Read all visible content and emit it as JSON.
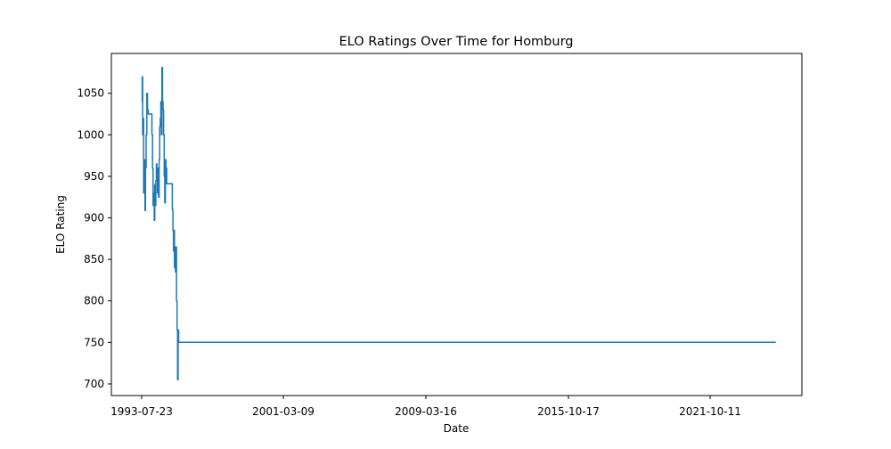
{
  "chart_data": {
    "type": "line",
    "title": "ELO Ratings Over Time for Homburg",
    "xlabel": "Date",
    "ylabel": "ELO Rating",
    "x_tick_labels": [
      "1993-07-23",
      "2001-03-09",
      "2009-03-16",
      "2015-10-17",
      "2021-10-11"
    ],
    "y_ticks": [
      700,
      750,
      800,
      850,
      900,
      950,
      1000,
      1050
    ],
    "ylim": [
      686,
      1098
    ],
    "grid": false,
    "line_color": "#1f77b4",
    "series": [
      {
        "points": [
          [
            "1993-07-23",
            1040
          ],
          [
            "1993-08-01",
            1070
          ],
          [
            "1993-08-10",
            1000
          ],
          [
            "1993-08-20",
            1020
          ],
          [
            "1993-08-28",
            930
          ],
          [
            "1993-09-10",
            970
          ],
          [
            "1993-09-20",
            909
          ],
          [
            "1993-10-01",
            960
          ],
          [
            "1993-10-12",
            1000
          ],
          [
            "1993-10-25",
            1050
          ],
          [
            "1993-11-05",
            1030
          ],
          [
            "1993-11-20",
            1025
          ],
          [
            "1993-12-10",
            1025
          ],
          [
            "1994-01-05",
            1025
          ],
          [
            "1994-01-25",
            1000
          ],
          [
            "1994-02-05",
            960
          ],
          [
            "1994-02-15",
            915
          ],
          [
            "1994-02-25",
            930
          ],
          [
            "1994-03-08",
            897
          ],
          [
            "1994-03-18",
            940
          ],
          [
            "1994-03-28",
            915
          ],
          [
            "1994-04-06",
            945
          ],
          [
            "1994-04-15",
            965
          ],
          [
            "1994-04-25",
            960
          ],
          [
            "1994-05-05",
            930
          ],
          [
            "1994-05-15",
            960
          ],
          [
            "1994-05-25",
            925
          ],
          [
            "1994-06-05",
            970
          ],
          [
            "1994-06-15",
            1010
          ],
          [
            "1994-06-25",
            1020
          ],
          [
            "1994-07-05",
            1040
          ],
          [
            "1994-07-15",
            1000
          ],
          [
            "1994-07-25",
            1081
          ],
          [
            "1994-08-05",
            1040
          ],
          [
            "1994-08-15",
            1030
          ],
          [
            "1994-08-25",
            1000
          ],
          [
            "1994-09-05",
            950
          ],
          [
            "1994-09-15",
            918
          ],
          [
            "1994-09-25",
            970
          ],
          [
            "1994-10-05",
            960
          ],
          [
            "1994-10-20",
            941
          ],
          [
            "1994-11-15",
            941
          ],
          [
            "1994-12-15",
            941
          ],
          [
            "1995-01-10",
            941
          ],
          [
            "1995-01-30",
            910
          ],
          [
            "1995-02-10",
            885
          ],
          [
            "1995-02-20",
            860
          ],
          [
            "1995-03-01",
            885
          ],
          [
            "1995-03-10",
            840
          ],
          [
            "1995-03-20",
            865
          ],
          [
            "1995-03-28",
            835
          ],
          [
            "1995-04-05",
            865
          ],
          [
            "1995-04-15",
            800
          ],
          [
            "1995-04-25",
            765
          ],
          [
            "1995-05-05",
            705
          ],
          [
            "1995-05-15",
            765
          ],
          [
            "1995-05-25",
            750
          ],
          [
            "2025-01-01",
            751
          ]
        ]
      }
    ]
  }
}
